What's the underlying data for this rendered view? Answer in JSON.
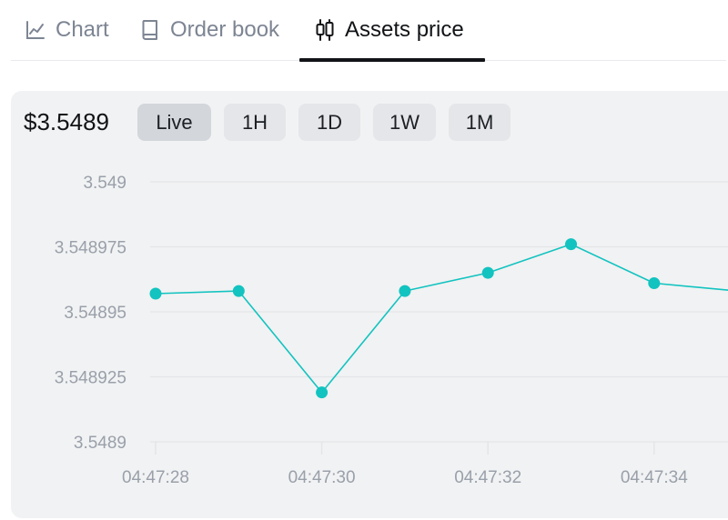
{
  "tabs": [
    {
      "label": "Chart",
      "icon": "line-chart-icon"
    },
    {
      "label": "Order book",
      "icon": "book-icon"
    },
    {
      "label": "Assets price",
      "icon": "candlestick-icon"
    }
  ],
  "active_tab": "Assets price",
  "price": "$3.5489",
  "ranges": [
    "Live",
    "1H",
    "1D",
    "1W",
    "1M"
  ],
  "selected_range": "Live",
  "colors": {
    "line": "#12c3c0",
    "card_bg": "#f1f2f3",
    "grid": "#e3e5e8",
    "axis_text": "#9aa0aa"
  },
  "chart_data": {
    "type": "line",
    "y_ticks": [
      "3.549",
      "3.548975",
      "3.54895",
      "3.548925",
      "3.5489"
    ],
    "ylim": [
      3.5489,
      3.549
    ],
    "x_ticks": [
      "04:47:28",
      "04:47:30",
      "04:47:32",
      "04:47:34"
    ],
    "series": [
      {
        "x": [
          "04:47:28",
          "04:47:29",
          "04:47:30",
          "04:47:31",
          "04:47:32",
          "04:47:33",
          "04:47:34",
          "04:47:35"
        ],
        "values": [
          3.548957,
          3.548958,
          3.548919,
          3.548958,
          3.548965,
          3.548976,
          3.548961,
          3.548958
        ]
      }
    ]
  }
}
